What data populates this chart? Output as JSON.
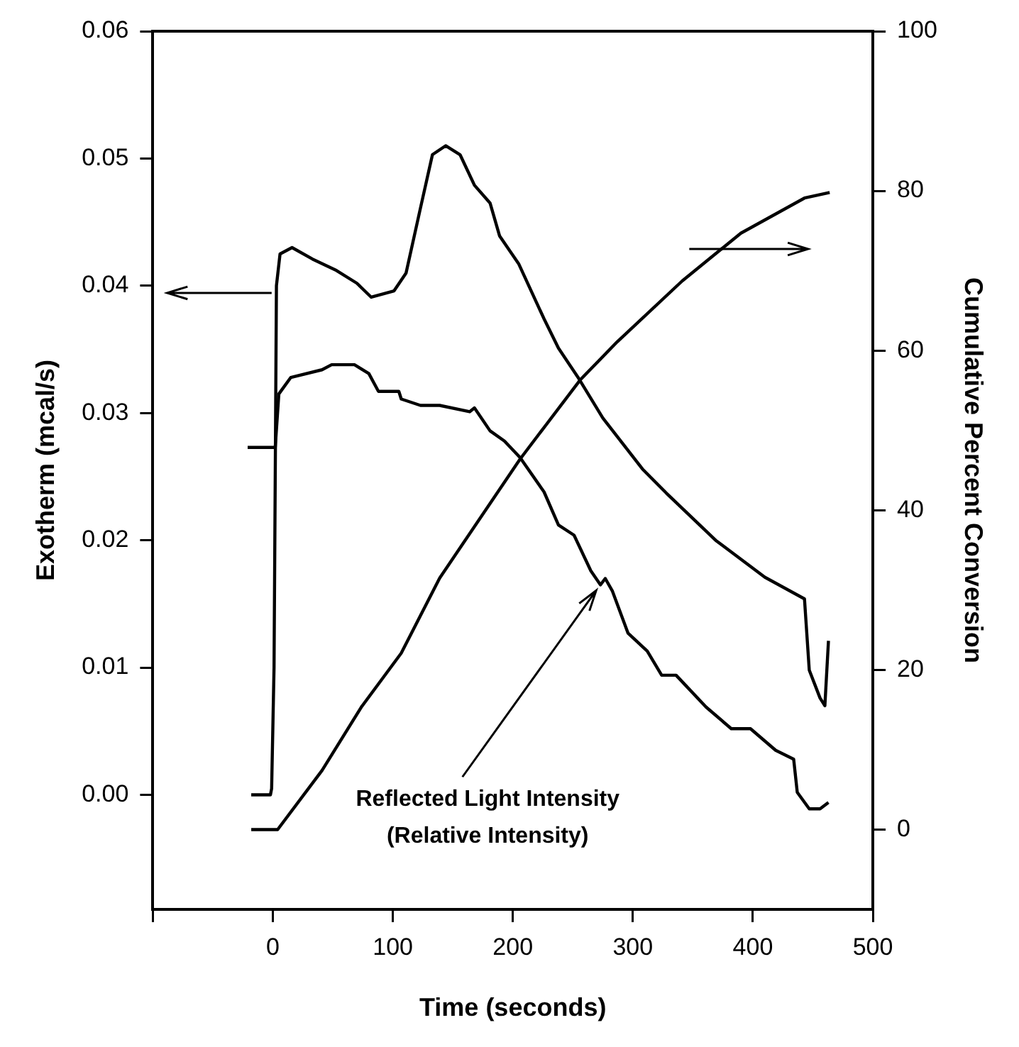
{
  "chart_data": {
    "type": "line",
    "xlabel": "Time (seconds)",
    "ylabel": "Exotherm (mcal/s)",
    "y2label": "Cumulative Percent Conversion",
    "xlim": [
      -100,
      500
    ],
    "xticks": [
      {
        "value": -100,
        "label": null
      },
      0,
      100,
      200,
      300,
      400,
      500
    ],
    "ylim": [
      -0.009,
      0.06
    ],
    "yticks": [
      {
        "value": 0,
        "label": "0.00"
      },
      {
        "value": 0.01,
        "label": "0.01"
      },
      {
        "value": 0.02,
        "label": "0.02"
      },
      {
        "value": 0.03,
        "label": "0.03"
      },
      {
        "value": 0.04,
        "label": "0.04"
      },
      {
        "value": 0.05,
        "label": "0.05"
      },
      {
        "value": 0.06,
        "label": "0.06"
      }
    ],
    "y2lim": [
      -10,
      100
    ],
    "y2ticks": [
      0,
      20,
      40,
      60,
      80,
      100
    ],
    "grid": false,
    "legend": false,
    "marker": "none",
    "line_style": "solid",
    "annotations": [
      {
        "text": "Reflected Light Intensity\n(Relative Intensity)",
        "x": 273,
        "y": 0.0165
      }
    ],
    "series": [
      {
        "color": "#000000",
        "axis": "y",
        "x": [
          -18,
          -2,
          -1,
          1,
          3,
          6,
          16,
          33,
          53,
          70,
          82,
          101,
          111,
          123,
          133,
          144,
          156,
          168,
          181,
          189,
          205,
          226,
          238,
          255,
          275,
          308,
          328,
          369,
          410,
          443,
          447,
          456,
          460,
          463
        ],
        "values": [
          0.0,
          0.0,
          0.0005,
          0.01,
          0.04,
          0.0425,
          0.043,
          0.0421,
          0.0412,
          0.0402,
          0.0391,
          0.0396,
          0.041,
          0.0461,
          0.0503,
          0.051,
          0.0503,
          0.0479,
          0.0465,
          0.0439,
          0.0417,
          0.0374,
          0.0351,
          0.0327,
          0.0296,
          0.0256,
          0.0237,
          0.02,
          0.0171,
          0.0154,
          0.0098,
          0.0076,
          0.007,
          0.0121
        ]
      },
      {
        "color": "#000000",
        "axis": "y2",
        "x": [
          -18,
          4,
          41,
          74,
          107,
          139,
          206,
          256,
          287,
          341,
          390,
          443,
          464
        ],
        "values": [
          0,
          0,
          7.4,
          15.4,
          22.1,
          31.5,
          46.4,
          56.3,
          61.1,
          68.7,
          74.7,
          79.1,
          79.8
        ]
      },
      {
        "color": "#000000",
        "axis": "y",
        "x": [
          -21,
          2,
          5,
          15,
          41,
          49,
          68,
          80,
          88,
          105,
          107,
          123,
          139,
          164,
          168,
          181,
          193,
          206,
          226,
          238,
          251,
          265,
          273,
          277,
          283,
          296,
          312,
          324,
          336,
          361,
          382,
          398,
          419,
          434,
          437,
          447,
          456,
          463
        ],
        "values": [
          0.0273,
          0.0273,
          0.0315,
          0.0328,
          0.0334,
          0.0338,
          0.0338,
          0.0331,
          0.0317,
          0.0317,
          0.0311,
          0.0306,
          0.0306,
          0.0301,
          0.0304,
          0.0286,
          0.0278,
          0.0265,
          0.0238,
          0.0212,
          0.0204,
          0.0176,
          0.0165,
          0.017,
          0.016,
          0.0127,
          0.0113,
          0.0094,
          0.0094,
          0.0069,
          0.0052,
          0.0052,
          0.0035,
          0.0028,
          0.0002,
          -0.0011,
          -0.0011,
          -0.0006
        ]
      }
    ]
  }
}
